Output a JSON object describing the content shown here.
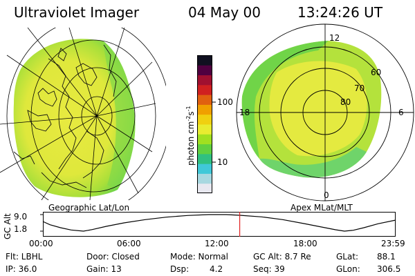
{
  "header": {
    "title": "Ultraviolet Imager",
    "date": "04 May 00",
    "time": "13:24:26 UT"
  },
  "left_panel": {
    "label": "Geographic Lat/Lon"
  },
  "right_panel": {
    "label": "Apex MLat/MLT",
    "mlt_labels": {
      "top": "12",
      "left": "18",
      "right": "6",
      "bottom": "0"
    },
    "lat_labels": [
      "60",
      "70",
      "80"
    ]
  },
  "colorbar": {
    "unit_label": "photon cm",
    "unit_exp1": "-2",
    "unit_s": "s",
    "unit_exp2": "-1",
    "tick_100": "100",
    "tick_10": "10",
    "colors": [
      "#e8e8f0",
      "#a8d8e0",
      "#40c8d8",
      "#30c080",
      "#60d040",
      "#a0e020",
      "#e8ec30",
      "#f0d010",
      "#f0a000",
      "#e06010",
      "#d02020",
      "#a01030",
      "#500040",
      "#101020"
    ]
  },
  "timeline": {
    "axis_label": "GC Alt",
    "y_max": "9.0",
    "y_min": "1.8",
    "x_ticks": [
      "00:00",
      "06:00",
      "12:00",
      "18:00",
      "23:59"
    ],
    "current_time_fraction": 0.558,
    "altitude_series": [
      [
        0.0,
        6.0
      ],
      [
        0.02,
        4.6
      ],
      [
        0.05,
        3.3
      ],
      [
        0.08,
        2.3
      ],
      [
        0.115,
        1.8
      ],
      [
        0.14,
        2.5
      ],
      [
        0.18,
        3.9
      ],
      [
        0.23,
        5.4
      ],
      [
        0.29,
        6.8
      ],
      [
        0.35,
        7.9
      ],
      [
        0.41,
        8.6
      ],
      [
        0.47,
        9.0
      ],
      [
        0.52,
        9.0
      ],
      [
        0.558,
        8.7
      ],
      [
        0.62,
        8.0
      ],
      [
        0.68,
        6.8
      ],
      [
        0.74,
        5.1
      ],
      [
        0.79,
        3.6
      ],
      [
        0.83,
        2.4
      ],
      [
        0.855,
        1.8
      ],
      [
        0.88,
        2.2
      ],
      [
        0.91,
        3.3
      ],
      [
        0.95,
        5.0
      ],
      [
        1.0,
        6.6
      ]
    ]
  },
  "footer": {
    "col1": {
      "flt": "Flt: LBHL",
      "ip": "IP: 36.0"
    },
    "col2": {
      "door": "Door: Closed",
      "gain": "Gain: 13"
    },
    "col3": {
      "mode": "Mode: Normal",
      "dsp_label": "Dsp:",
      "dsp_value": "4.2"
    },
    "col4": {
      "gcalt": "GC Alt: 8.7 Re",
      "seq": "Seq: 39"
    },
    "col5": {
      "glat_label": "GLat:",
      "glat_value": "88.1",
      "glon_label": "GLon:",
      "glon_value": "306.5"
    }
  }
}
